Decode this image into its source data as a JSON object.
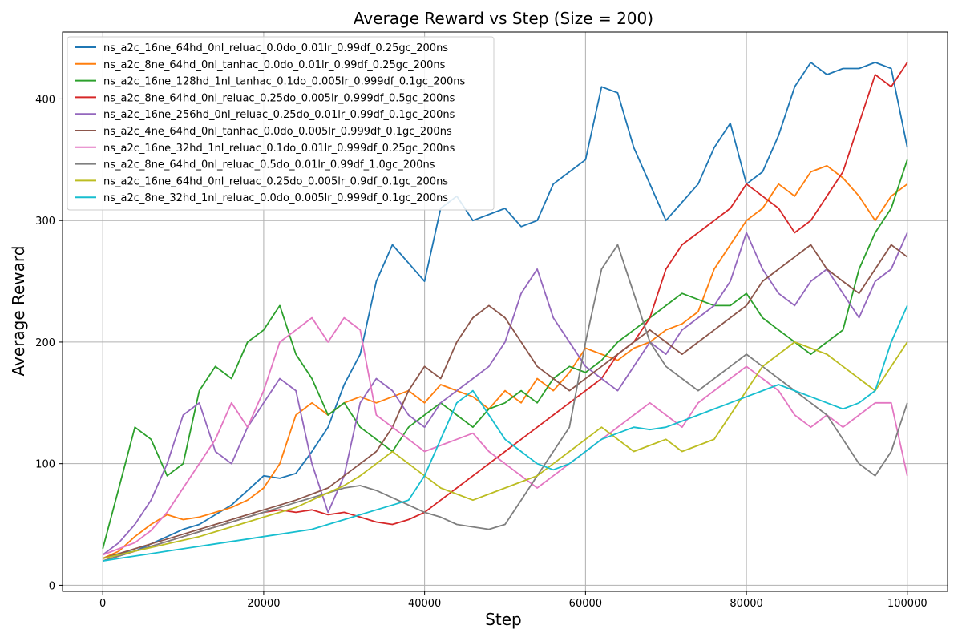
{
  "chart_data": {
    "type": "line",
    "title": "Average Reward vs Step (Size = 200)",
    "xlabel": "Step",
    "ylabel": "Average Reward",
    "xlim": [
      -5000,
      105000
    ],
    "ylim": [
      -5,
      455
    ],
    "xticks": [
      0,
      20000,
      40000,
      60000,
      80000,
      100000
    ],
    "yticks": [
      0,
      100,
      200,
      300,
      400
    ],
    "grid": true,
    "legend_position": "upper-left",
    "series": [
      {
        "name": "ns_a2c_16ne_64hd_0nl_reluac_0.0do_0.01lr_0.99df_0.25gc_200ns",
        "color": "#1f77b4",
        "x": [
          0,
          2000,
          4000,
          6000,
          8000,
          10000,
          12000,
          14000,
          16000,
          18000,
          20000,
          22000,
          24000,
          26000,
          28000,
          30000,
          32000,
          34000,
          36000,
          38000,
          40000,
          42000,
          44000,
          46000,
          48000,
          50000,
          52000,
          54000,
          56000,
          58000,
          60000,
          62000,
          64000,
          66000,
          68000,
          70000,
          72000,
          74000,
          76000,
          78000,
          80000,
          82000,
          84000,
          86000,
          88000,
          90000,
          92000,
          94000,
          96000,
          98000,
          100000
        ],
        "y": [
          22,
          26,
          28,
          34,
          40,
          46,
          50,
          58,
          66,
          78,
          90,
          88,
          92,
          110,
          130,
          165,
          190,
          250,
          280,
          265,
          250,
          310,
          320,
          300,
          305,
          310,
          295,
          300,
          330,
          340,
          350,
          410,
          405,
          360,
          330,
          300,
          315,
          330,
          360,
          380,
          330,
          340,
          370,
          410,
          430,
          420,
          425,
          425,
          430,
          425,
          360
        ]
      },
      {
        "name": "ns_a2c_8ne_64hd_0nl_tanhac_0.0do_0.01lr_0.99df_0.25gc_200ns",
        "color": "#ff7f0e",
        "x": [
          0,
          2000,
          4000,
          6000,
          8000,
          10000,
          12000,
          14000,
          16000,
          18000,
          20000,
          22000,
          24000,
          26000,
          28000,
          30000,
          32000,
          34000,
          36000,
          38000,
          40000,
          42000,
          44000,
          46000,
          48000,
          50000,
          52000,
          54000,
          56000,
          58000,
          60000,
          62000,
          64000,
          66000,
          68000,
          70000,
          72000,
          74000,
          76000,
          78000,
          80000,
          82000,
          84000,
          86000,
          88000,
          90000,
          92000,
          94000,
          96000,
          98000,
          100000
        ],
        "y": [
          22,
          28,
          40,
          50,
          58,
          54,
          56,
          60,
          64,
          70,
          80,
          100,
          140,
          150,
          140,
          150,
          155,
          150,
          155,
          160,
          150,
          165,
          160,
          155,
          145,
          160,
          150,
          170,
          160,
          175,
          195,
          190,
          185,
          195,
          200,
          210,
          215,
          225,
          260,
          280,
          300,
          310,
          330,
          320,
          340,
          345,
          335,
          320,
          300,
          320,
          330
        ]
      },
      {
        "name": "ns_a2c_16ne_128hd_1nl_tanhac_0.1do_0.005lr_0.999df_0.1gc_200ns",
        "color": "#2ca02c",
        "x": [
          0,
          2000,
          4000,
          6000,
          8000,
          10000,
          12000,
          14000,
          16000,
          18000,
          20000,
          22000,
          24000,
          26000,
          28000,
          30000,
          32000,
          34000,
          36000,
          38000,
          40000,
          42000,
          44000,
          46000,
          48000,
          50000,
          52000,
          54000,
          56000,
          58000,
          60000,
          62000,
          64000,
          66000,
          68000,
          70000,
          72000,
          74000,
          76000,
          78000,
          80000,
          82000,
          84000,
          86000,
          88000,
          90000,
          92000,
          94000,
          96000,
          98000,
          100000
        ],
        "y": [
          30,
          80,
          130,
          120,
          90,
          100,
          160,
          180,
          170,
          200,
          210,
          230,
          190,
          170,
          140,
          150,
          130,
          120,
          110,
          130,
          140,
          150,
          140,
          130,
          145,
          150,
          160,
          150,
          170,
          180,
          175,
          185,
          200,
          210,
          220,
          230,
          240,
          235,
          230,
          230,
          240,
          220,
          210,
          200,
          190,
          200,
          210,
          260,
          290,
          310,
          350
        ]
      },
      {
        "name": "ns_a2c_8ne_64hd_0nl_reluac_0.25do_0.005lr_0.999df_0.5gc_200ns",
        "color": "#d62728",
        "x": [
          0,
          2000,
          4000,
          6000,
          8000,
          10000,
          12000,
          14000,
          16000,
          18000,
          20000,
          22000,
          24000,
          26000,
          28000,
          30000,
          32000,
          34000,
          36000,
          38000,
          40000,
          42000,
          44000,
          46000,
          48000,
          50000,
          52000,
          54000,
          56000,
          58000,
          60000,
          62000,
          64000,
          66000,
          68000,
          70000,
          72000,
          74000,
          76000,
          78000,
          80000,
          82000,
          84000,
          86000,
          88000,
          90000,
          92000,
          94000,
          96000,
          98000,
          100000
        ],
        "y": [
          20,
          24,
          28,
          32,
          36,
          40,
          44,
          48,
          52,
          56,
          60,
          62,
          60,
          62,
          58,
          60,
          56,
          52,
          50,
          54,
          60,
          70,
          80,
          90,
          100,
          110,
          120,
          130,
          140,
          150,
          160,
          170,
          190,
          200,
          220,
          260,
          280,
          290,
          300,
          310,
          330,
          320,
          310,
          290,
          300,
          320,
          340,
          380,
          420,
          410,
          430
        ]
      },
      {
        "name": "ns_a2c_16ne_256hd_0nl_reluac_0.25do_0.01lr_0.99df_0.1gc_200ns",
        "color": "#9467bd",
        "x": [
          0,
          2000,
          4000,
          6000,
          8000,
          10000,
          12000,
          14000,
          16000,
          18000,
          20000,
          22000,
          24000,
          26000,
          28000,
          30000,
          32000,
          34000,
          36000,
          38000,
          40000,
          42000,
          44000,
          46000,
          48000,
          50000,
          52000,
          54000,
          56000,
          58000,
          60000,
          62000,
          64000,
          66000,
          68000,
          70000,
          72000,
          74000,
          76000,
          78000,
          80000,
          82000,
          84000,
          86000,
          88000,
          90000,
          92000,
          94000,
          96000,
          98000,
          100000
        ],
        "y": [
          25,
          35,
          50,
          70,
          100,
          140,
          150,
          110,
          100,
          130,
          150,
          170,
          160,
          100,
          60,
          90,
          150,
          170,
          160,
          140,
          130,
          150,
          160,
          170,
          180,
          200,
          240,
          260,
          220,
          200,
          180,
          170,
          160,
          180,
          200,
          190,
          210,
          220,
          230,
          250,
          290,
          260,
          240,
          230,
          250,
          260,
          240,
          220,
          250,
          260,
          290
        ]
      },
      {
        "name": "ns_a2c_4ne_64hd_0nl_tanhac_0.0do_0.005lr_0.999df_0.1gc_200ns",
        "color": "#8c564b",
        "x": [
          0,
          2000,
          4000,
          6000,
          8000,
          10000,
          12000,
          14000,
          16000,
          18000,
          20000,
          22000,
          24000,
          26000,
          28000,
          30000,
          32000,
          34000,
          36000,
          38000,
          40000,
          42000,
          44000,
          46000,
          48000,
          50000,
          52000,
          54000,
          56000,
          58000,
          60000,
          62000,
          64000,
          66000,
          68000,
          70000,
          72000,
          74000,
          76000,
          78000,
          80000,
          82000,
          84000,
          86000,
          88000,
          90000,
          92000,
          94000,
          96000,
          98000,
          100000
        ],
        "y": [
          22,
          26,
          30,
          34,
          38,
          42,
          46,
          50,
          54,
          58,
          62,
          66,
          70,
          75,
          80,
          90,
          100,
          110,
          130,
          160,
          180,
          170,
          200,
          220,
          230,
          220,
          200,
          180,
          170,
          160,
          170,
          180,
          190,
          200,
          210,
          200,
          190,
          200,
          210,
          220,
          230,
          250,
          260,
          270,
          280,
          260,
          250,
          240,
          260,
          280,
          270
        ]
      },
      {
        "name": "ns_a2c_16ne_32hd_1nl_reluac_0.1do_0.01lr_0.999df_0.25gc_200ns",
        "color": "#e377c2",
        "x": [
          0,
          2000,
          4000,
          6000,
          8000,
          10000,
          12000,
          14000,
          16000,
          18000,
          20000,
          22000,
          24000,
          26000,
          28000,
          30000,
          32000,
          34000,
          36000,
          38000,
          40000,
          42000,
          44000,
          46000,
          48000,
          50000,
          52000,
          54000,
          56000,
          58000,
          60000,
          62000,
          64000,
          66000,
          68000,
          70000,
          72000,
          74000,
          76000,
          78000,
          80000,
          82000,
          84000,
          86000,
          88000,
          90000,
          92000,
          94000,
          96000,
          98000,
          100000
        ],
        "y": [
          25,
          30,
          35,
          45,
          60,
          80,
          100,
          120,
          150,
          130,
          160,
          200,
          210,
          220,
          200,
          220,
          210,
          140,
          130,
          120,
          110,
          115,
          120,
          125,
          110,
          100,
          90,
          80,
          90,
          100,
          110,
          120,
          130,
          140,
          150,
          140,
          130,
          150,
          160,
          170,
          180,
          170,
          160,
          140,
          130,
          140,
          130,
          140,
          150,
          150,
          90
        ]
      },
      {
        "name": "ns_a2c_8ne_64hd_0nl_reluac_0.5do_0.01lr_0.99df_1.0gc_200ns",
        "color": "#7f7f7f",
        "x": [
          0,
          2000,
          4000,
          6000,
          8000,
          10000,
          12000,
          14000,
          16000,
          18000,
          20000,
          22000,
          24000,
          26000,
          28000,
          30000,
          32000,
          34000,
          36000,
          38000,
          40000,
          42000,
          44000,
          46000,
          48000,
          50000,
          52000,
          54000,
          56000,
          58000,
          60000,
          62000,
          64000,
          66000,
          68000,
          70000,
          72000,
          74000,
          76000,
          78000,
          80000,
          82000,
          84000,
          86000,
          88000,
          90000,
          92000,
          94000,
          96000,
          98000,
          100000
        ],
        "y": [
          20,
          24,
          28,
          32,
          36,
          40,
          44,
          48,
          52,
          56,
          60,
          64,
          68,
          72,
          76,
          80,
          82,
          78,
          72,
          66,
          60,
          56,
          50,
          48,
          46,
          50,
          70,
          90,
          110,
          130,
          200,
          260,
          280,
          240,
          200,
          180,
          170,
          160,
          170,
          180,
          190,
          180,
          170,
          160,
          150,
          140,
          120,
          100,
          90,
          110,
          150
        ]
      },
      {
        "name": "ns_a2c_16ne_64hd_0nl_reluac_0.25do_0.005lr_0.9df_0.1gc_200ns",
        "color": "#bcbd22",
        "x": [
          0,
          2000,
          4000,
          6000,
          8000,
          10000,
          12000,
          14000,
          16000,
          18000,
          20000,
          22000,
          24000,
          26000,
          28000,
          30000,
          32000,
          34000,
          36000,
          38000,
          40000,
          42000,
          44000,
          46000,
          48000,
          50000,
          52000,
          54000,
          56000,
          58000,
          60000,
          62000,
          64000,
          66000,
          68000,
          70000,
          72000,
          74000,
          76000,
          78000,
          80000,
          82000,
          84000,
          86000,
          88000,
          90000,
          92000,
          94000,
          96000,
          98000,
          100000
        ],
        "y": [
          22,
          25,
          28,
          31,
          34,
          37,
          40,
          44,
          48,
          52,
          56,
          60,
          64,
          70,
          76,
          82,
          90,
          100,
          110,
          100,
          90,
          80,
          75,
          70,
          75,
          80,
          85,
          90,
          100,
          110,
          120,
          130,
          120,
          110,
          115,
          120,
          110,
          115,
          120,
          140,
          160,
          180,
          190,
          200,
          195,
          190,
          180,
          170,
          160,
          180,
          200
        ]
      },
      {
        "name": "ns_a2c_8ne_32hd_1nl_reluac_0.0do_0.005lr_0.999df_0.1gc_200ns",
        "color": "#17becf",
        "x": [
          0,
          2000,
          4000,
          6000,
          8000,
          10000,
          12000,
          14000,
          16000,
          18000,
          20000,
          22000,
          24000,
          26000,
          28000,
          30000,
          32000,
          34000,
          36000,
          38000,
          40000,
          42000,
          44000,
          46000,
          48000,
          50000,
          52000,
          54000,
          56000,
          58000,
          60000,
          62000,
          64000,
          66000,
          68000,
          70000,
          72000,
          74000,
          76000,
          78000,
          80000,
          82000,
          84000,
          86000,
          88000,
          90000,
          92000,
          94000,
          96000,
          98000,
          100000
        ],
        "y": [
          20,
          22,
          24,
          26,
          28,
          30,
          32,
          34,
          36,
          38,
          40,
          42,
          44,
          46,
          50,
          54,
          58,
          62,
          66,
          70,
          90,
          120,
          150,
          160,
          140,
          120,
          110,
          100,
          95,
          100,
          110,
          120,
          125,
          130,
          128,
          130,
          135,
          140,
          145,
          150,
          155,
          160,
          165,
          160,
          155,
          150,
          145,
          150,
          160,
          200,
          230
        ]
      }
    ]
  }
}
